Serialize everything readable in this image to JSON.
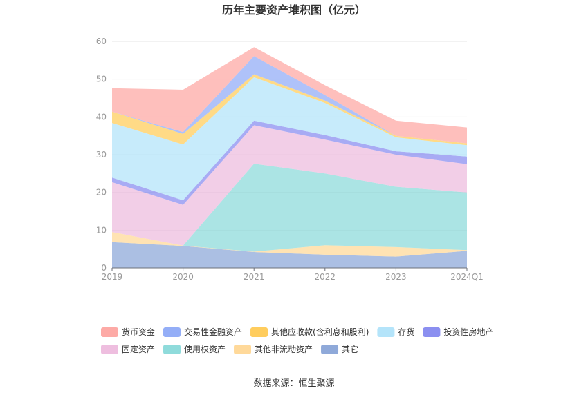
{
  "chart_data": {
    "type": "area",
    "stacked": true,
    "title": "历年主要资产堆积图（亿元）",
    "categories": [
      "2019",
      "2020",
      "2021",
      "2022",
      "2023",
      "2024Q1"
    ],
    "ylim": [
      0,
      60
    ],
    "yticks": [
      0,
      10,
      20,
      30,
      40,
      50,
      60
    ],
    "grid": true,
    "legend_position": "bottom",
    "series": [
      {
        "name": "其它",
        "color": "#8fa9d9",
        "values": [
          6.8,
          5.8,
          4.2,
          3.5,
          3.0,
          4.5
        ]
      },
      {
        "name": "其他非流动资产",
        "color": "#ffd99a",
        "values": [
          2.7,
          0.1,
          0.1,
          2.5,
          2.5,
          0.2
        ]
      },
      {
        "name": "使用权资产",
        "color": "#8fdbdb",
        "values": [
          0.0,
          0.0,
          23.3,
          19.0,
          16.0,
          15.3
        ]
      },
      {
        "name": "固定资产",
        "color": "#eebedf",
        "values": [
          13.2,
          10.8,
          10.2,
          9.0,
          8.5,
          7.5
        ]
      },
      {
        "name": "投资性房地产",
        "color": "#8b8ff0",
        "values": [
          1.2,
          1.2,
          1.2,
          1.2,
          0.9,
          2.0
        ]
      },
      {
        "name": "存货",
        "color": "#b4e4fa",
        "values": [
          14.5,
          14.8,
          11.5,
          8.5,
          3.7,
          3.0
        ]
      },
      {
        "name": "其他应收款(含利息和股利)",
        "color": "#ffcd5e",
        "values": [
          3.0,
          2.8,
          0.8,
          0.6,
          0.4,
          0.5
        ]
      },
      {
        "name": "交易性金融资产",
        "color": "#94aef7",
        "values": [
          0.0,
          0.5,
          4.8,
          1.5,
          0.0,
          0.0
        ]
      },
      {
        "name": "货币资金",
        "color": "#fdaaa6",
        "values": [
          6.2,
          11.2,
          2.4,
          2.6,
          4.0,
          4.2
        ]
      }
    ]
  },
  "source_text": "数据来源：恒生聚源",
  "legend_order": [
    "货币资金",
    "交易性金融资产",
    "其他应收款(含利息和股利)",
    "存货",
    "投资性房地产",
    "固定资产",
    "使用权资产",
    "其他非流动资产",
    "其它"
  ]
}
